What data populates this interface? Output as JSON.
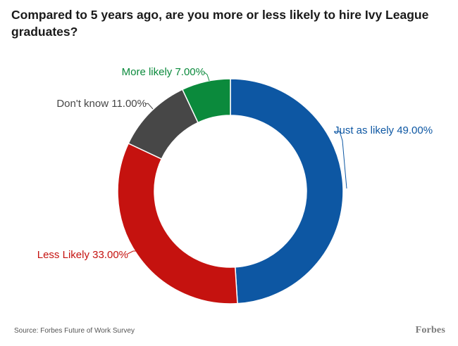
{
  "chart_data": {
    "type": "pie",
    "title": "Compared to 5 years ago, are you more or less likely to hire Ivy League graduates?",
    "slices": [
      {
        "label": "Just as likely",
        "value": 49.0,
        "value_text": "49.00%",
        "color": "#0d57a3"
      },
      {
        "label": "Less Likely",
        "value": 33.0,
        "value_text": "33.00%",
        "color": "#c5120f"
      },
      {
        "label": "Don't know",
        "value": 11.0,
        "value_text": "11.00%",
        "color": "#474747"
      },
      {
        "label": "More likely",
        "value": 7.0,
        "value_text": "7.00%",
        "color": "#0b8a3c"
      }
    ],
    "label_colors": [
      "#0d57a3",
      "#c5120f",
      "#474747",
      "#0b8a3c"
    ],
    "donut": true,
    "legend": "none"
  },
  "footer": {
    "source": "Source: Forbes Future of Work Survey",
    "brand": "Forbes"
  }
}
